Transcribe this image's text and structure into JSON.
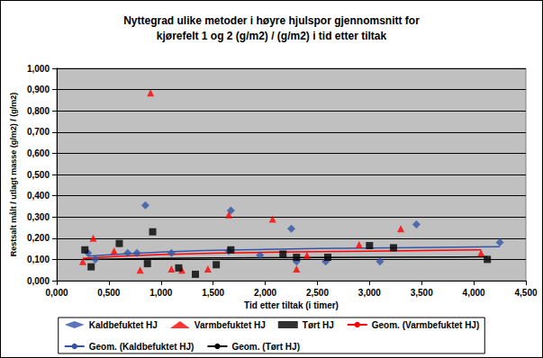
{
  "chart_data": {
    "type": "scatter",
    "title": "Nyttegrad ulike metoder i høyre hjulspor gjennomsnitt for\nkjørefelt 1 og 2 (g/m2) / (g/m2) i tid etter tiltak",
    "x_label": "Tid etter tiltak (i timer)",
    "y_label": "Restsalt målt / utlagt masse (g/m2) / (g/m2)",
    "xlim": [
      0,
      4.5
    ],
    "xticks": [
      {
        "value": 0,
        "label": "0,000"
      },
      {
        "value": 0.5,
        "label": "0,500"
      },
      {
        "value": 1,
        "label": "1,000"
      },
      {
        "value": 1.5,
        "label": "1,500"
      },
      {
        "value": 2,
        "label": "2,000"
      },
      {
        "value": 2.5,
        "label": "2,500"
      },
      {
        "value": 3,
        "label": "3,000"
      },
      {
        "value": 3.5,
        "label": "3,500"
      },
      {
        "value": 4,
        "label": "4,000"
      },
      {
        "value": 4.5,
        "label": "4,500"
      }
    ],
    "ylim": [
      0,
      1
    ],
    "yticks": [
      {
        "value": 0,
        "label": "0,000"
      },
      {
        "value": 0.1,
        "label": "0,100"
      },
      {
        "value": 0.2,
        "label": "0,200"
      },
      {
        "value": 0.3,
        "label": "0,300"
      },
      {
        "value": 0.4,
        "label": "0,400"
      },
      {
        "value": 0.5,
        "label": "0,500"
      },
      {
        "value": 0.6,
        "label": "0,600"
      },
      {
        "value": 0.7,
        "label": "0,700"
      },
      {
        "value": 0.8,
        "label": "0,800"
      },
      {
        "value": 0.9,
        "label": "0,900"
      },
      {
        "value": 1,
        "label": "1,000"
      }
    ],
    "grid": true,
    "legend": "bottom",
    "series": [
      {
        "name": "Kaldbefuktet HJ",
        "type": "scatter",
        "marker": "diamond",
        "color": "#3355a8",
        "x": [
          0.3,
          0.37,
          0.68,
          0.77,
          0.85,
          1.1,
          1.65,
          1.67,
          1.95,
          2.25,
          2.3,
          2.58,
          3.1,
          3.45,
          4.25
        ],
        "values": [
          0.13,
          0.1,
          0.13,
          0.13,
          0.355,
          0.13,
          0.14,
          0.33,
          0.12,
          0.245,
          0.09,
          0.09,
          0.09,
          0.265,
          0.18
        ]
      },
      {
        "name": "Varmbefuktet HJ",
        "type": "scatter",
        "marker": "triangle",
        "color": "#ff0000",
        "x": [
          0.25,
          0.35,
          0.55,
          0.8,
          0.9,
          1.1,
          1.2,
          1.45,
          1.65,
          2.07,
          2.3,
          2.4,
          2.9,
          3.3,
          4.07
        ],
        "values": [
          0.09,
          0.2,
          0.14,
          0.05,
          0.885,
          0.055,
          0.05,
          0.055,
          0.31,
          0.29,
          0.055,
          0.12,
          0.17,
          0.245,
          0.13
        ]
      },
      {
        "name": "Tørt HJ",
        "type": "scatter",
        "marker": "square",
        "color": "#000000",
        "x": [
          0.27,
          0.33,
          0.6,
          0.87,
          0.92,
          1.17,
          1.33,
          1.53,
          1.67,
          2.17,
          2.3,
          2.6,
          3.0,
          3.23,
          4.13
        ],
        "values": [
          0.145,
          0.065,
          0.175,
          0.08,
          0.23,
          0.06,
          0.03,
          0.075,
          0.145,
          0.125,
          0.11,
          0.11,
          0.165,
          0.155,
          0.1
        ]
      },
      {
        "name": "Geom. (Varmbefuktet HJ)",
        "type": "line",
        "line_style": "solid",
        "color": "#ff0000",
        "x": [
          0.25,
          1,
          2,
          3,
          4.07
        ],
        "values": [
          0.105,
          0.123,
          0.133,
          0.139,
          0.145
        ]
      },
      {
        "name": "Geom. (Kaldbefuktet HJ)",
        "type": "line",
        "line_style": "solid",
        "color": "#3355a8",
        "x": [
          0.3,
          1,
          2,
          3,
          4.25
        ],
        "values": [
          0.115,
          0.135,
          0.147,
          0.154,
          0.16
        ]
      },
      {
        "name": "Geom. (Tørt HJ)",
        "type": "line",
        "line_style": "solid",
        "color": "#000000",
        "x": [
          0.27,
          1,
          2,
          3,
          4.13
        ],
        "values": [
          0.1,
          0.105,
          0.108,
          0.11,
          0.112
        ]
      }
    ]
  }
}
